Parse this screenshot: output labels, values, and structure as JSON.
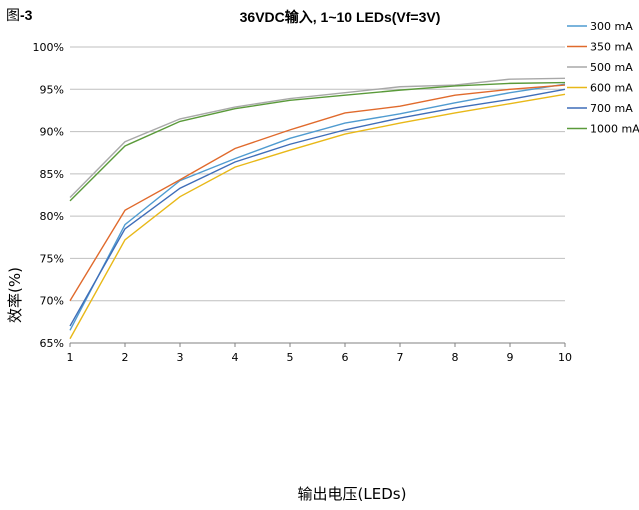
{
  "figure_label": "图-3",
  "chart_data": {
    "type": "line",
    "title": "36VDC输入, 1~10 LEDs(Vf=3V)",
    "xlabel": "输出电压(LEDs)",
    "ylabel": "效率(%)",
    "x": [
      1,
      2,
      3,
      4,
      5,
      6,
      7,
      8,
      9,
      10
    ],
    "xlim": [
      1,
      10
    ],
    "ylim": [
      65,
      100
    ],
    "yticks": [
      65,
      70,
      75,
      80,
      85,
      90,
      95,
      100
    ],
    "ytick_labels": [
      "65%",
      "70%",
      "75%",
      "80%",
      "85%",
      "90%",
      "95%",
      "100%"
    ],
    "xtick_labels": [
      "1",
      "2",
      "3",
      "4",
      "5",
      "6",
      "7",
      "8",
      "9",
      "10"
    ],
    "grid": "horizontal",
    "legend_position": "right",
    "series": [
      {
        "name": "300 mA",
        "color": "#4f9bd0",
        "values": [
          66.5,
          79.0,
          84.2,
          86.8,
          89.2,
          91.0,
          92.1,
          93.4,
          94.6,
          95.6
        ]
      },
      {
        "name": "350 mA",
        "color": "#e06a2c",
        "values": [
          70.0,
          80.7,
          84.3,
          88.0,
          90.2,
          92.2,
          93.0,
          94.3,
          95.0,
          95.5
        ]
      },
      {
        "name": "500 mA",
        "color": "#a8a8a8",
        "values": [
          82.2,
          88.8,
          91.5,
          92.9,
          93.9,
          94.6,
          95.3,
          95.5,
          96.2,
          96.3
        ]
      },
      {
        "name": "600 mA",
        "color": "#e8b818",
        "values": [
          65.5,
          77.2,
          82.3,
          85.8,
          87.8,
          89.7,
          91.0,
          92.2,
          93.3,
          94.4
        ]
      },
      {
        "name": "700 mA",
        "color": "#3f6db8",
        "values": [
          67.0,
          78.5,
          83.3,
          86.4,
          88.5,
          90.2,
          91.6,
          92.8,
          93.8,
          95.0
        ]
      },
      {
        "name": "1000 mA",
        "color": "#5a9a3a",
        "values": [
          81.8,
          88.3,
          91.2,
          92.7,
          93.7,
          94.3,
          94.9,
          95.4,
          95.7,
          95.8
        ]
      }
    ]
  }
}
